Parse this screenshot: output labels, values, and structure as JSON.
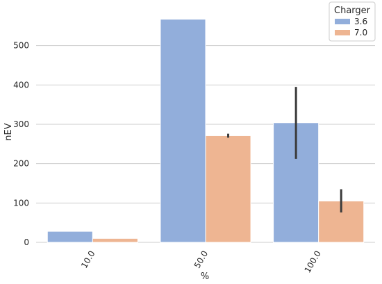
{
  "chart_data": {
    "type": "bar",
    "xlabel": "%",
    "ylabel": "nEV",
    "categories": [
      "10.0",
      "50.0",
      "100.0"
    ],
    "ylim": [
      0,
      600
    ],
    "yticks": [
      0,
      100,
      200,
      300,
      400,
      500
    ],
    "grid": "horizontal",
    "legend": {
      "title": "Charger",
      "placement": "top-right"
    },
    "series": [
      {
        "name": "3.6",
        "color": "#92aedb",
        "values": [
          28,
          567,
          304
        ],
        "error": [
          null,
          null,
          [
            212,
            395
          ]
        ]
      },
      {
        "name": "7.0",
        "color": "#eeb592",
        "values": [
          10,
          271,
          105
        ],
        "error": [
          null,
          [
            266,
            276
          ],
          [
            76,
            135
          ]
        ]
      }
    ]
  }
}
